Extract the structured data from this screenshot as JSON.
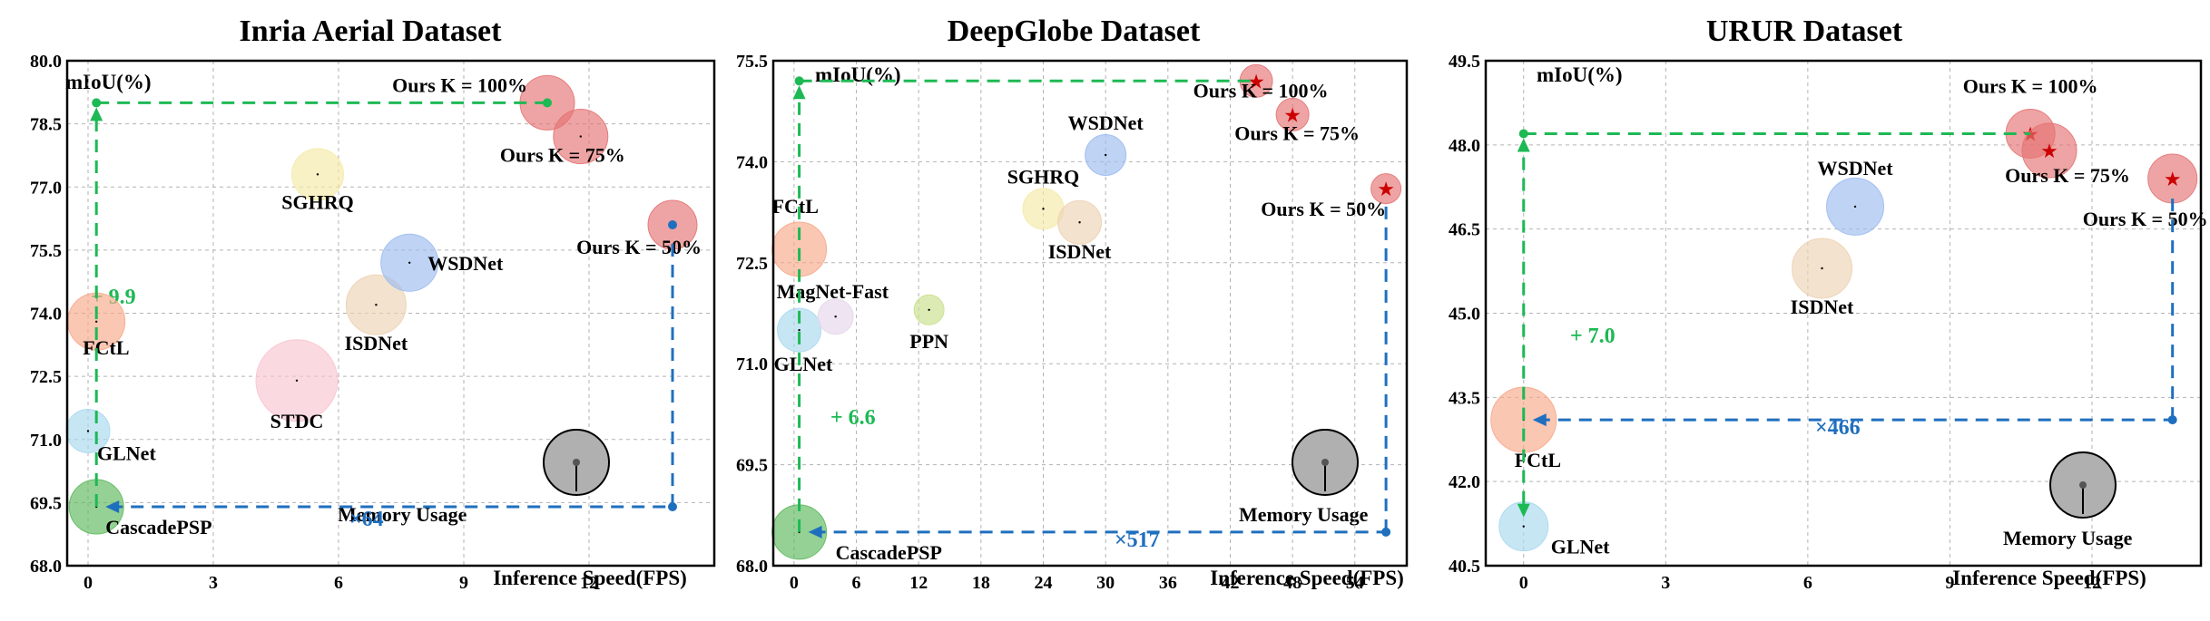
{
  "colors": {
    "green_guide": "#1db954",
    "blue_guide": "#1f6fbf",
    "ours": "#e57373",
    "ours_marker_dot": "#1db954",
    "ours_marker_star": "#cc0000"
  },
  "chart_data": [
    {
      "type": "scatter",
      "title": "Inria Aerial Dataset",
      "ylabel": "mIoU(%)",
      "xlabel": "Inference Speed(FPS)",
      "xlim": [
        -0.5,
        15
      ],
      "ylim": [
        68.0,
        80.0
      ],
      "xticks": [
        0,
        3,
        6,
        9,
        12
      ],
      "yticks": [
        68.0,
        69.5,
        71.0,
        72.5,
        74.0,
        75.5,
        77.0,
        78.5,
        80.0
      ],
      "grid": true,
      "points": [
        {
          "name": "CascadePSP",
          "x": 0.2,
          "y": 69.4,
          "memory": 1.0,
          "color": "#5cb85c"
        },
        {
          "name": "GLNet",
          "x": 0.0,
          "y": 71.2,
          "memory": 0.8,
          "color": "#a9d8ee"
        },
        {
          "name": "FCtL",
          "x": 0.2,
          "y": 73.8,
          "memory": 1.05,
          "color": "#f7a98a"
        },
        {
          "name": "STDC",
          "x": 5.0,
          "y": 72.4,
          "memory": 1.5,
          "color": "#f9c5d0"
        },
        {
          "name": "ISDNet",
          "x": 6.9,
          "y": 74.2,
          "memory": 1.1,
          "color": "#ecd2b4"
        },
        {
          "name": "WSDNet",
          "x": 7.7,
          "y": 75.2,
          "memory": 1.05,
          "color": "#9dbbf0"
        },
        {
          "name": "SGHRQ",
          "x": 5.5,
          "y": 77.3,
          "memory": 0.95,
          "color": "#f5eaa8"
        },
        {
          "name": "Ours K = 100%",
          "x": 11.0,
          "y": 79.0,
          "memory": 1.0,
          "color": "#e57373",
          "marker": "dot"
        },
        {
          "name": "Ours K = 75%",
          "x": 11.8,
          "y": 78.2,
          "memory": 1.0,
          "color": "#e57373",
          "marker": "none"
        },
        {
          "name": "Ours K = 50%",
          "x": 14.0,
          "y": 76.1,
          "memory": 0.9,
          "color": "#e57373",
          "marker": "bluedot"
        }
      ],
      "annotations": {
        "gain": "+ 9.9",
        "speedup": "×64",
        "memory_label": "Memory Usage"
      }
    },
    {
      "type": "scatter",
      "title": "DeepGlobe Dataset",
      "ylabel": "mIoU(%)",
      "xlabel": "Inference Speed(FPS)",
      "xlim": [
        -2,
        59
      ],
      "ylim": [
        68.0,
        75.5
      ],
      "xticks": [
        0,
        6,
        12,
        18,
        24,
        30,
        36,
        42,
        48,
        54
      ],
      "yticks": [
        68.0,
        69.5,
        71.0,
        72.5,
        74.0,
        75.5
      ],
      "grid": true,
      "points": [
        {
          "name": "CascadePSP",
          "x": 0.5,
          "y": 68.5,
          "memory": 1.0,
          "color": "#5cb85c"
        },
        {
          "name": "GLNet",
          "x": 0.5,
          "y": 71.5,
          "memory": 0.8,
          "color": "#a9d8ee"
        },
        {
          "name": "FCtL",
          "x": 0.5,
          "y": 72.7,
          "memory": 1.0,
          "color": "#f7a98a"
        },
        {
          "name": "MagNet-Fast",
          "x": 4.0,
          "y": 71.7,
          "memory": 0.65,
          "color": "#e6d6ea"
        },
        {
          "name": "PPN",
          "x": 13.0,
          "y": 71.8,
          "memory": 0.55,
          "color": "#c9e08a"
        },
        {
          "name": "SGHRQ",
          "x": 24.0,
          "y": 73.3,
          "memory": 0.75,
          "color": "#f5eaa8"
        },
        {
          "name": "ISDNet",
          "x": 27.5,
          "y": 73.1,
          "memory": 0.8,
          "color": "#ecd2b4"
        },
        {
          "name": "WSDNet",
          "x": 30.0,
          "y": 74.1,
          "memory": 0.75,
          "color": "#9dbbf0"
        },
        {
          "name": "Ours K = 100%",
          "x": 44.5,
          "y": 75.2,
          "memory": 0.6,
          "color": "#e57373",
          "marker": "star"
        },
        {
          "name": "Ours K = 75%",
          "x": 48.0,
          "y": 74.7,
          "memory": 0.6,
          "color": "#e57373",
          "marker": "star"
        },
        {
          "name": "Ours K = 50%",
          "x": 57.0,
          "y": 73.6,
          "memory": 0.55,
          "color": "#e57373",
          "marker": "star"
        }
      ],
      "annotations": {
        "gain": "+ 6.6",
        "speedup": "×517",
        "memory_label": "Memory Usage"
      }
    },
    {
      "type": "scatter",
      "title": "URUR Dataset",
      "ylabel": "mIoU(%)",
      "xlabel": "Inference Speed(FPS)",
      "xlim": [
        -0.8,
        14.3
      ],
      "ylim": [
        40.5,
        49.5
      ],
      "xticks": [
        0,
        3,
        6,
        9,
        12
      ],
      "yticks": [
        40.5,
        42.0,
        43.5,
        45.0,
        46.5,
        48.0,
        49.5
      ],
      "grid": true,
      "points": [
        {
          "name": "GLNet",
          "x": 0.0,
          "y": 41.2,
          "memory": 0.9,
          "color": "#a9d8ee"
        },
        {
          "name": "FCtL",
          "x": 0.0,
          "y": 43.1,
          "memory": 1.2,
          "color": "#f7a98a"
        },
        {
          "name": "ISDNet",
          "x": 6.3,
          "y": 45.8,
          "memory": 1.1,
          "color": "#ecd2b4"
        },
        {
          "name": "WSDNet",
          "x": 7.0,
          "y": 46.9,
          "memory": 1.05,
          "color": "#9dbbf0"
        },
        {
          "name": "Ours K = 100%",
          "x": 10.7,
          "y": 48.2,
          "memory": 0.9,
          "color": "#e57373",
          "marker": "star"
        },
        {
          "name": "Ours K = 75%",
          "x": 11.1,
          "y": 47.9,
          "memory": 1.0,
          "color": "#e57373",
          "marker": "star"
        },
        {
          "name": "Ours K = 50%",
          "x": 13.7,
          "y": 47.4,
          "memory": 0.9,
          "color": "#e57373",
          "marker": "star"
        }
      ],
      "annotations": {
        "gain": "+ 7.0",
        "speedup": "×466",
        "memory_label": "Memory Usage"
      }
    }
  ]
}
